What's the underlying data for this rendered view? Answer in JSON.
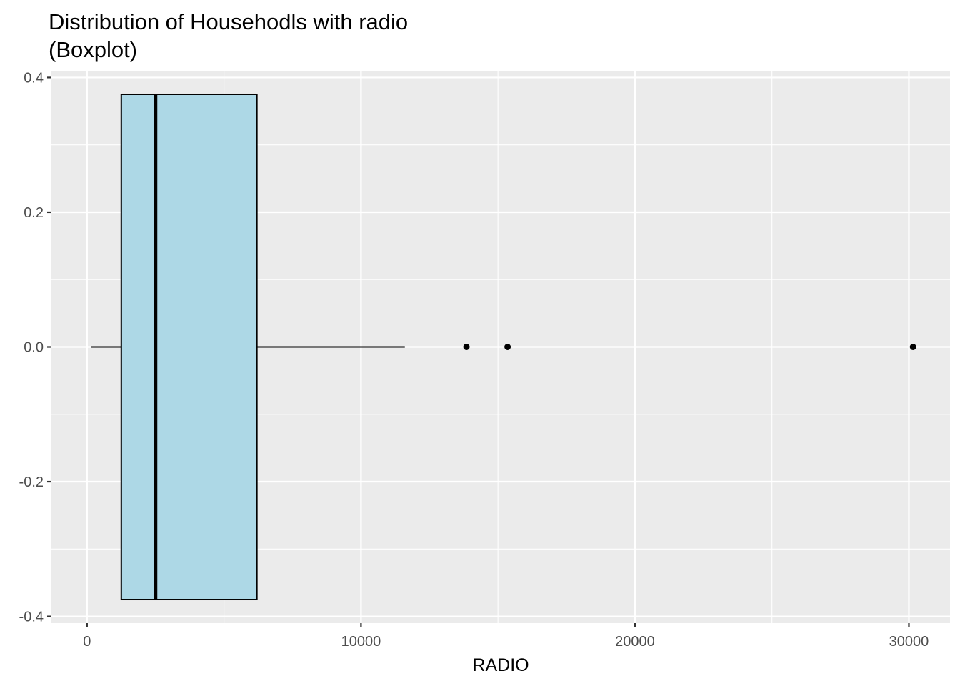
{
  "chart_data": {
    "type": "boxplot",
    "title_lines": [
      "Distribution of Househodls with radio",
      "(Boxplot)"
    ],
    "xlabel": "RADIO",
    "ylabel": "",
    "xlim": [
      -1300,
      31500
    ],
    "ylim": [
      -0.41,
      0.41
    ],
    "x_ticks": [
      0,
      10000,
      20000,
      30000
    ],
    "x_tick_labels": [
      "0",
      "10000",
      "20000",
      "30000"
    ],
    "y_ticks": [
      -0.4,
      -0.2,
      0.0,
      0.2,
      0.4
    ],
    "y_tick_labels": [
      "-0.4",
      "-0.2",
      "0.0",
      "0.2",
      "0.4"
    ],
    "grid": true,
    "orientation": "horizontal",
    "box": {
      "whisker_low": 150,
      "q1": 1250,
      "median": 2500,
      "q3": 6200,
      "whisker_high": 11600,
      "y_center": 0.0,
      "half_width": 0.375
    },
    "outliers": [
      13850,
      15350,
      30150
    ],
    "colors": {
      "panel_background": "#ebebeb",
      "grid_major": "#ffffff",
      "box_fill": "#add8e6",
      "box_outline": "#000000",
      "outlier": "#000000"
    }
  }
}
